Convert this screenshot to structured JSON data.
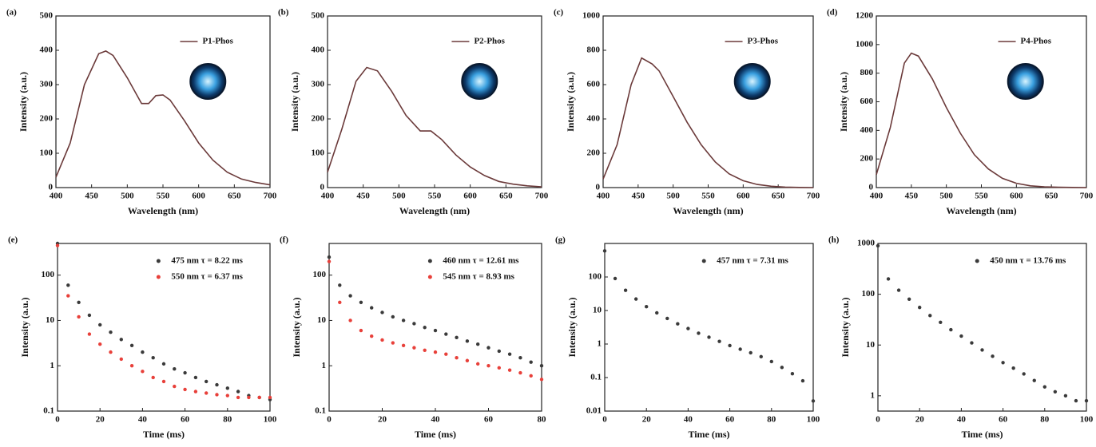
{
  "chart_data": [
    {
      "type": "line",
      "label": "(a)",
      "xlabel": "Wavelength (nm)",
      "ylabel": "Intensity (a.u.)",
      "xlim": [
        400,
        700
      ],
      "xticks": [
        400,
        450,
        500,
        550,
        600,
        650,
        700
      ],
      "ylim": [
        0,
        500
      ],
      "yticks": [
        0,
        100,
        200,
        300,
        400,
        500
      ],
      "series": [
        {
          "name": "P1-Phos",
          "color": "#6b3a3a",
          "x": [
            400,
            420,
            440,
            460,
            470,
            480,
            500,
            520,
            530,
            540,
            550,
            560,
            580,
            600,
            620,
            640,
            660,
            680,
            700
          ],
          "values": [
            30,
            130,
            300,
            390,
            398,
            385,
            320,
            245,
            245,
            268,
            270,
            255,
            195,
            130,
            80,
            45,
            25,
            15,
            8
          ]
        }
      ]
    },
    {
      "type": "line",
      "label": "(b)",
      "xlabel": "Wavelength (nm)",
      "ylabel": "Intensity (a.u.)",
      "xlim": [
        400,
        700
      ],
      "xticks": [
        400,
        450,
        500,
        550,
        600,
        650,
        700
      ],
      "ylim": [
        0,
        500
      ],
      "yticks": [
        0,
        100,
        200,
        300,
        400,
        500
      ],
      "series": [
        {
          "name": "P2-Phos",
          "color": "#6b3a3a",
          "x": [
            400,
            420,
            440,
            455,
            470,
            490,
            510,
            530,
            545,
            560,
            580,
            600,
            620,
            640,
            660,
            680,
            700
          ],
          "values": [
            45,
            170,
            310,
            350,
            340,
            280,
            210,
            165,
            165,
            140,
            95,
            60,
            35,
            18,
            10,
            5,
            2
          ]
        }
      ]
    },
    {
      "type": "line",
      "label": "(c)",
      "xlabel": "Wavelength (nm)",
      "ylabel": "Intensity (a.u.)",
      "xlim": [
        400,
        700
      ],
      "xticks": [
        400,
        450,
        500,
        550,
        600,
        650,
        700
      ],
      "ylim": [
        0,
        1000
      ],
      "yticks": [
        0,
        200,
        400,
        600,
        800,
        1000
      ],
      "series": [
        {
          "name": "P3-Phos",
          "color": "#6b3a3a",
          "x": [
            400,
            420,
            440,
            455,
            470,
            480,
            500,
            520,
            540,
            560,
            580,
            600,
            620,
            640,
            660,
            680,
            700
          ],
          "values": [
            50,
            250,
            600,
            755,
            720,
            680,
            530,
            380,
            250,
            150,
            80,
            40,
            18,
            8,
            3,
            1,
            0
          ]
        }
      ]
    },
    {
      "type": "line",
      "label": "(d)",
      "xlabel": "Wavelength (nm)",
      "ylabel": "Intensity (a.u.)",
      "xlim": [
        400,
        700
      ],
      "xticks": [
        400,
        450,
        500,
        550,
        600,
        650,
        700
      ],
      "ylim": [
        0,
        1200
      ],
      "yticks": [
        0,
        200,
        400,
        600,
        800,
        1000,
        1200
      ],
      "series": [
        {
          "name": "P4-Phos",
          "color": "#6b3a3a",
          "x": [
            400,
            420,
            440,
            450,
            460,
            480,
            500,
            520,
            540,
            560,
            580,
            600,
            620,
            640,
            660,
            680,
            700
          ],
          "values": [
            90,
            420,
            870,
            940,
            920,
            760,
            560,
            380,
            230,
            130,
            65,
            30,
            12,
            5,
            2,
            1,
            0
          ]
        }
      ]
    },
    {
      "type": "scatter",
      "label": "(e)",
      "xlabel": "Time (ms)",
      "ylabel": "Intensity (a.u.)",
      "log_y": true,
      "xlim": [
        0,
        100
      ],
      "xticks": [
        0,
        20,
        40,
        60,
        80,
        100
      ],
      "ylim": [
        0.1,
        500
      ],
      "yticks": [
        0.1,
        1,
        10,
        100
      ],
      "series": [
        {
          "name": "475 nm  τ = 8.22 ms",
          "color": "#3a3a3a",
          "x": [
            0,
            5,
            10,
            15,
            20,
            25,
            30,
            35,
            40,
            45,
            50,
            55,
            60,
            65,
            70,
            75,
            80,
            85,
            90,
            95,
            100
          ],
          "values": [
            500,
            60,
            25,
            13,
            8,
            5.5,
            3.8,
            2.8,
            2,
            1.5,
            1.1,
            0.85,
            0.7,
            0.55,
            0.45,
            0.38,
            0.32,
            0.27,
            0.22,
            0.2,
            0.18
          ]
        },
        {
          "name": "550 nm  τ = 6.37 ms",
          "color": "#e8403a",
          "x": [
            0,
            5,
            10,
            15,
            20,
            25,
            30,
            35,
            40,
            45,
            50,
            55,
            60,
            65,
            70,
            75,
            80,
            85,
            90,
            95,
            100
          ],
          "values": [
            450,
            35,
            12,
            5,
            3,
            2,
            1.4,
            1,
            0.75,
            0.55,
            0.45,
            0.35,
            0.3,
            0.27,
            0.25,
            0.23,
            0.22,
            0.2,
            0.2,
            0.2,
            0.2
          ]
        }
      ]
    },
    {
      "type": "scatter",
      "label": "(f)",
      "xlabel": "Time (ms)",
      "ylabel": "Intensity (a.u.)",
      "log_y": true,
      "xlim": [
        0,
        80
      ],
      "xticks": [
        0,
        20,
        40,
        60,
        80
      ],
      "ylim": [
        0.1,
        500
      ],
      "yticks": [
        0.1,
        1,
        10,
        100
      ],
      "series": [
        {
          "name": "460 nm  τ = 12.61 ms",
          "color": "#3a3a3a",
          "x": [
            0,
            4,
            8,
            12,
            16,
            20,
            24,
            28,
            32,
            36,
            40,
            44,
            48,
            52,
            56,
            60,
            64,
            68,
            72,
            76,
            80
          ],
          "values": [
            250,
            60,
            35,
            25,
            19,
            15,
            12,
            10,
            8.5,
            7,
            6,
            5,
            4.2,
            3.5,
            3,
            2.5,
            2.1,
            1.8,
            1.5,
            1.2,
            1
          ]
        },
        {
          "name": "545 nm  τ = 8.93 ms",
          "color": "#e8403a",
          "x": [
            0,
            4,
            8,
            12,
            16,
            20,
            24,
            28,
            32,
            36,
            40,
            44,
            48,
            52,
            56,
            60,
            64,
            68,
            72,
            76,
            80
          ],
          "values": [
            200,
            25,
            10,
            6,
            4.5,
            3.7,
            3.2,
            2.8,
            2.5,
            2.2,
            2,
            1.8,
            1.5,
            1.3,
            1.1,
            1,
            0.9,
            0.8,
            0.7,
            0.6,
            0.5
          ]
        }
      ]
    },
    {
      "type": "scatter",
      "label": "(g)",
      "xlabel": "Time (ms)",
      "ylabel": "Intensity (a.u.)",
      "log_y": true,
      "xlim": [
        0,
        100
      ],
      "xticks": [
        0,
        20,
        40,
        60,
        80,
        100
      ],
      "ylim": [
        0.01,
        1000
      ],
      "yticks": [
        0.01,
        0.1,
        1,
        10,
        100
      ],
      "series": [
        {
          "name": "457 nm  τ = 7.31 ms",
          "color": "#3a3a3a",
          "x": [
            0,
            5,
            10,
            15,
            20,
            25,
            30,
            35,
            40,
            45,
            50,
            55,
            60,
            65,
            70,
            75,
            80,
            85,
            90,
            95,
            100
          ],
          "values": [
            600,
            90,
            40,
            22,
            13,
            8.5,
            5.8,
            4,
            2.9,
            2.1,
            1.6,
            1.2,
            0.9,
            0.7,
            0.55,
            0.42,
            0.3,
            0.2,
            0.13,
            0.08,
            0.02
          ]
        }
      ]
    },
    {
      "type": "scatter",
      "label": "(h)",
      "xlabel": "Time (ms)",
      "ylabel": "Intensity (a.u.)",
      "log_y": true,
      "xlim": [
        0,
        100
      ],
      "xticks": [
        0,
        20,
        40,
        60,
        80,
        100
      ],
      "ylim": [
        0.5,
        1000
      ],
      "yticks": [
        1,
        10,
        100,
        1000
      ],
      "series": [
        {
          "name": "450 nm  τ = 13.76 ms",
          "color": "#3a3a3a",
          "x": [
            0,
            5,
            10,
            15,
            20,
            25,
            30,
            35,
            40,
            45,
            50,
            55,
            60,
            65,
            70,
            75,
            80,
            85,
            90,
            95,
            100
          ],
          "values": [
            900,
            200,
            120,
            80,
            55,
            38,
            28,
            20,
            15,
            11,
            8,
            6,
            4.5,
            3.5,
            2.7,
            2,
            1.5,
            1.2,
            1,
            0.8,
            0.8
          ]
        }
      ]
    }
  ]
}
